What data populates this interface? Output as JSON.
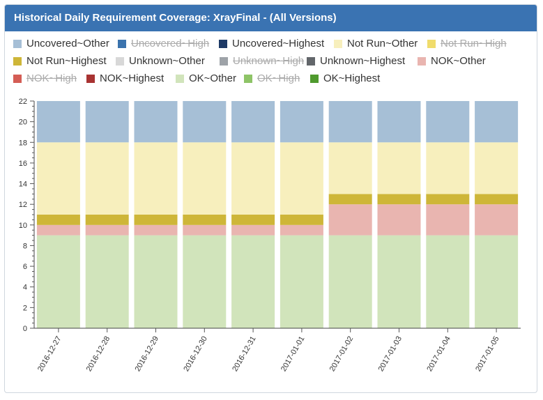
{
  "header": {
    "title": "Historical Daily Requirement Coverage: XrayFinal - (All Versions)"
  },
  "legend": [
    {
      "label": "Uncovered~Other",
      "color": "#a6bfd6",
      "hidden": false
    },
    {
      "label": "Uncovered~High",
      "color": "#3b73ad",
      "hidden": true
    },
    {
      "label": "Uncovered~Highest",
      "color": "#1e3a66",
      "hidden": false
    },
    {
      "label": "Not Run~Other",
      "color": "#f7efbd",
      "hidden": false
    },
    {
      "label": "Not Run~High",
      "color": "#f0dc6c",
      "hidden": true
    },
    {
      "label": "Not Run~Highest",
      "color": "#ceb638",
      "hidden": false
    },
    {
      "label": "Unknown~Other",
      "color": "#d8d8d8",
      "hidden": false
    },
    {
      "label": "Unknown~High",
      "color": "#9ea3a8",
      "hidden": true
    },
    {
      "label": "Unknown~Highest",
      "color": "#62666a",
      "hidden": false
    },
    {
      "label": "NOK~Other",
      "color": "#e9b5b0",
      "hidden": false
    },
    {
      "label": "NOK~High",
      "color": "#d45d55",
      "hidden": true
    },
    {
      "label": "NOK~Highest",
      "color": "#a83332",
      "hidden": false
    },
    {
      "label": "OK~Other",
      "color": "#d1e4bb",
      "hidden": false
    },
    {
      "label": "OK~High",
      "color": "#8ec467",
      "hidden": true
    },
    {
      "label": "OK~Highest",
      "color": "#4f9a2e",
      "hidden": false
    }
  ],
  "chart_data": {
    "type": "bar",
    "stacked": true,
    "title": "",
    "xlabel": "",
    "ylabel": "",
    "ylim": [
      0,
      22
    ],
    "y_ticks": [
      0,
      2,
      4,
      6,
      8,
      10,
      12,
      14,
      16,
      18,
      20,
      22
    ],
    "categories": [
      "2016-12-27",
      "2016-12-28",
      "2016-12-29",
      "2016-12-30",
      "2016-12-31",
      "2017-01-01",
      "2017-01-02",
      "2017-01-03",
      "2017-01-04",
      "2017-01-05"
    ],
    "series": [
      {
        "name": "OK~Other",
        "color": "#d1e4bb",
        "values": [
          9,
          9,
          9,
          9,
          9,
          9,
          9,
          9,
          9,
          9
        ]
      },
      {
        "name": "NOK~Other",
        "color": "#e9b5b0",
        "values": [
          1,
          1,
          1,
          1,
          1,
          1,
          3,
          3,
          3,
          3
        ]
      },
      {
        "name": "Not Run~Highest",
        "color": "#ceb638",
        "values": [
          1,
          1,
          1,
          1,
          1,
          1,
          1,
          1,
          1,
          1
        ]
      },
      {
        "name": "Not Run~Other",
        "color": "#f7efbd",
        "values": [
          7,
          7,
          7,
          7,
          7,
          7,
          5,
          5,
          5,
          5
        ]
      },
      {
        "name": "Uncovered~Other",
        "color": "#a6bfd6",
        "values": [
          4,
          4,
          4,
          4,
          4,
          4,
          4,
          4,
          4,
          4
        ]
      }
    ]
  }
}
